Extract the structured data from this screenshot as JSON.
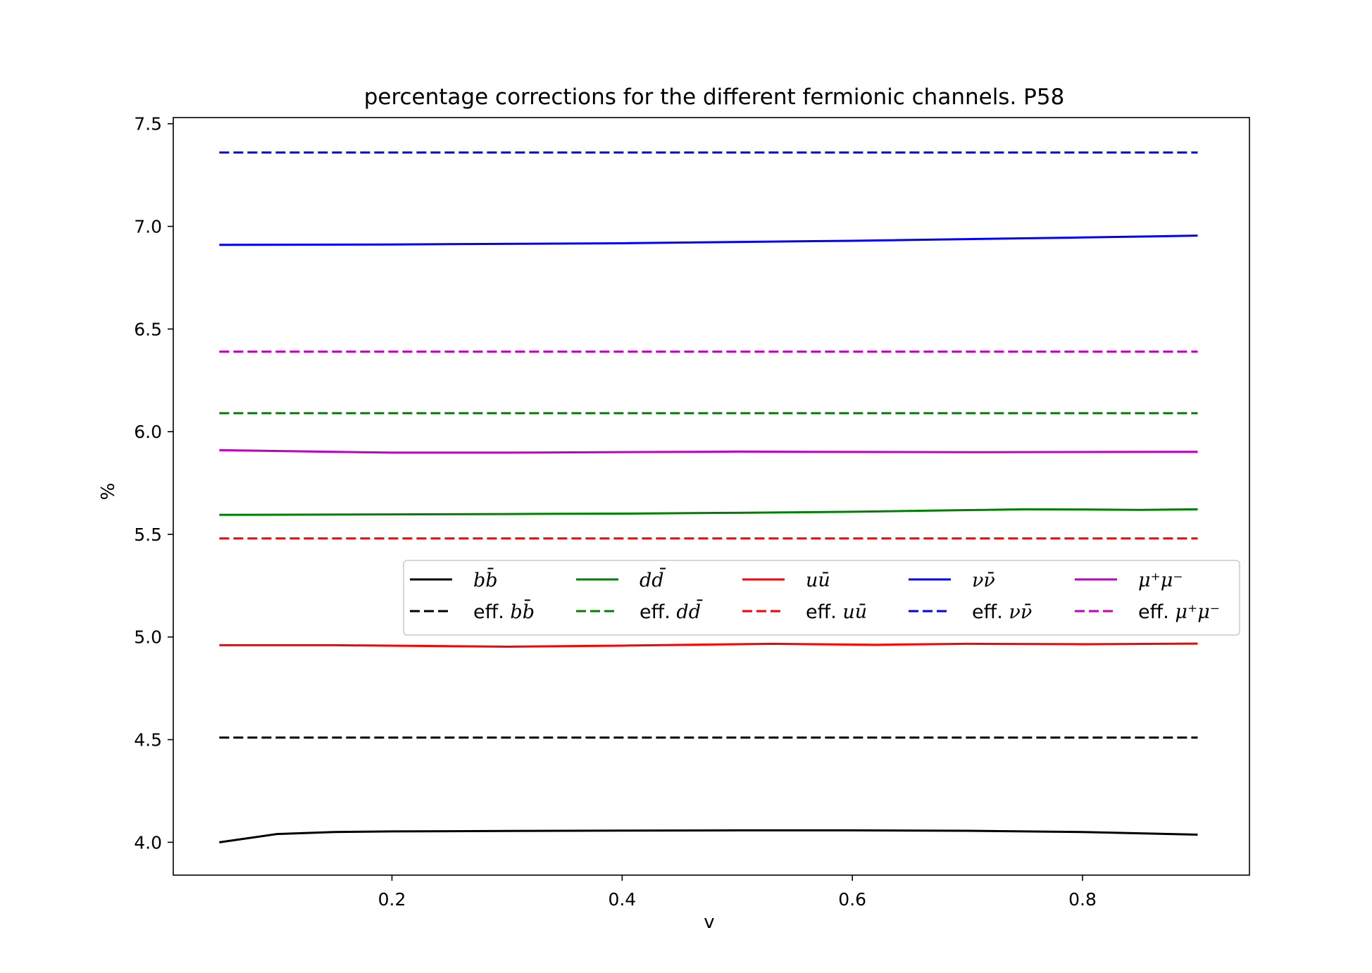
{
  "chart_data": {
    "type": "line",
    "title": "percentage corrections for the different fermionic channels.  P58",
    "xlabel": "v",
    "ylabel": "%",
    "xlim": [
      0.01,
      0.945
    ],
    "ylim": [
      3.84,
      7.53
    ],
    "xticks": [
      0.2,
      0.4,
      0.6,
      0.8
    ],
    "yticks": [
      4.0,
      4.5,
      5.0,
      5.5,
      6.0,
      6.5,
      7.0,
      7.5
    ],
    "xtick_labels": [
      "0.2",
      "0.4",
      "0.6",
      "0.8"
    ],
    "ytick_labels": [
      "4.0",
      "4.5",
      "5.0",
      "5.5",
      "6.0",
      "6.5",
      "7.0",
      "7.5"
    ],
    "grid": false,
    "legend_placement": "center-right",
    "legend_columns": 5,
    "series": [
      {
        "name": "b b̄",
        "legend_parts": [
          {
            "t": "b",
            "it": true
          },
          {
            "t": "b̄",
            "it": true
          }
        ],
        "color": "#000000",
        "dash": "solid",
        "x": [
          0.05,
          0.1,
          0.15,
          0.2,
          0.3,
          0.4,
          0.5,
          0.6,
          0.7,
          0.8,
          0.9
        ],
        "y": [
          4.0,
          4.04,
          4.05,
          4.053,
          4.055,
          4.057,
          4.058,
          4.058,
          4.056,
          4.05,
          4.037
        ]
      },
      {
        "name": "eff. b b̄",
        "legend_parts": [
          {
            "t": "eff. ",
            "it": false
          },
          {
            "t": "b",
            "it": true
          },
          {
            "t": "b̄",
            "it": true
          }
        ],
        "color": "#000000",
        "dash": "dashed",
        "x": [
          0.05,
          0.9
        ],
        "y": [
          4.51,
          4.51
        ]
      },
      {
        "name": "d d̄",
        "legend_parts": [
          {
            "t": "d",
            "it": true
          },
          {
            "t": "d̄",
            "it": true
          }
        ],
        "color": "#008000",
        "dash": "solid",
        "x": [
          0.05,
          0.2,
          0.3,
          0.4,
          0.5,
          0.6,
          0.7,
          0.75,
          0.8,
          0.85,
          0.9
        ],
        "y": [
          5.595,
          5.597,
          5.599,
          5.601,
          5.605,
          5.61,
          5.618,
          5.622,
          5.621,
          5.619,
          5.622
        ]
      },
      {
        "name": "eff. d d̄",
        "legend_parts": [
          {
            "t": "eff. ",
            "it": false
          },
          {
            "t": "d",
            "it": true
          },
          {
            "t": "d̄",
            "it": true
          }
        ],
        "color": "#008000",
        "dash": "dashed",
        "x": [
          0.05,
          0.9
        ],
        "y": [
          6.09,
          6.09
        ]
      },
      {
        "name": "u ū",
        "legend_parts": [
          {
            "t": "u",
            "it": true
          },
          {
            "t": "ū",
            "it": true
          }
        ],
        "color": "#ff0000",
        "dash": "solid",
        "x": [
          0.05,
          0.15,
          0.3,
          0.4,
          0.53,
          0.62,
          0.7,
          0.8,
          0.9
        ],
        "y": [
          4.96,
          4.96,
          4.953,
          4.958,
          4.967,
          4.962,
          4.967,
          4.965,
          4.968
        ]
      },
      {
        "name": "eff. u ū",
        "legend_parts": [
          {
            "t": "eff. ",
            "it": false
          },
          {
            "t": "u",
            "it": true
          },
          {
            "t": "ū",
            "it": true
          }
        ],
        "color": "#ff0000",
        "dash": "dashed",
        "x": [
          0.05,
          0.9
        ],
        "y": [
          5.48,
          5.48
        ]
      },
      {
        "name": "ν ν̄",
        "legend_parts": [
          {
            "t": "ν",
            "it": true
          },
          {
            "t": "ν̄",
            "it": true
          }
        ],
        "color": "#0000ff",
        "dash": "solid",
        "x": [
          0.05,
          0.2,
          0.4,
          0.6,
          0.8,
          0.9
        ],
        "y": [
          6.91,
          6.912,
          6.918,
          6.93,
          6.946,
          6.955
        ]
      },
      {
        "name": "eff. ν ν̄",
        "legend_parts": [
          {
            "t": "eff. ",
            "it": false
          },
          {
            "t": "ν",
            "it": true
          },
          {
            "t": "ν̄",
            "it": true
          }
        ],
        "color": "#0000ff",
        "dash": "dashed",
        "x": [
          0.05,
          0.9
        ],
        "y": [
          7.36,
          7.36
        ]
      },
      {
        "name": "μ⁺μ⁻",
        "legend_parts": [
          {
            "t": "μ⁺μ⁻",
            "it": true
          }
        ],
        "color": "#bf00bf",
        "dash": "solid",
        "x": [
          0.05,
          0.2,
          0.3,
          0.5,
          0.7,
          0.9
        ],
        "y": [
          5.91,
          5.898,
          5.898,
          5.903,
          5.9,
          5.902
        ]
      },
      {
        "name": "eff. μ⁺μ⁻",
        "legend_parts": [
          {
            "t": "eff. ",
            "it": false
          },
          {
            "t": "μ⁺μ⁻",
            "it": true
          }
        ],
        "color": "#bf00bf",
        "dash": "dashed",
        "x": [
          0.05,
          0.9
        ],
        "y": [
          6.39,
          6.39
        ]
      }
    ]
  }
}
